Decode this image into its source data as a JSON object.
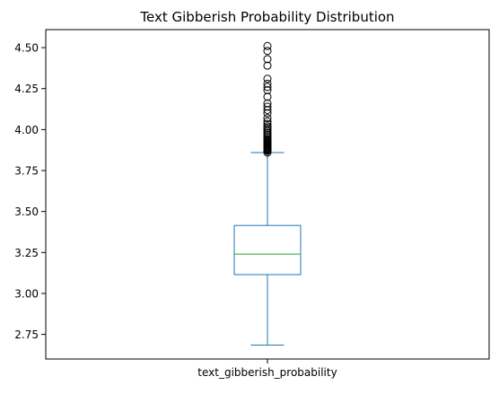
{
  "chart_data": {
    "type": "box",
    "title": "Text Gibberish Probability Distribution",
    "xlabel": "",
    "ylabel": "",
    "categories": [
      "text_gibberish_probability"
    ],
    "ylim": [
      2.6,
      4.61
    ],
    "yticks": [
      2.75,
      3.0,
      3.25,
      3.5,
      3.75,
      4.0,
      4.25,
      4.5
    ],
    "ytick_labels": [
      "2.75",
      "3.00",
      "3.25",
      "3.50",
      "3.75",
      "4.00",
      "4.25",
      "4.50"
    ],
    "grid": false,
    "legend": "none",
    "boxes": [
      {
        "name": "text_gibberish_probability",
        "whisker_low": 2.685,
        "q1": 3.115,
        "median": 3.24,
        "q3": 3.415,
        "whisker_high": 3.86,
        "outliers": [
          3.86,
          3.87,
          3.875,
          3.88,
          3.885,
          3.89,
          3.895,
          3.9,
          3.905,
          3.91,
          3.915,
          3.92,
          3.925,
          3.93,
          3.935,
          3.94,
          3.95,
          3.96,
          3.97,
          3.98,
          3.99,
          4.0,
          4.01,
          4.02,
          4.035,
          4.05,
          4.07,
          4.1,
          4.12,
          4.14,
          4.16,
          4.2,
          4.24,
          4.26,
          4.28,
          4.31,
          4.39,
          4.43,
          4.48,
          4.51
        ]
      }
    ],
    "colors": {
      "box": "#1f77b4",
      "median": "#2ca02c",
      "outlier_edge": "#000000",
      "axes": "#000000"
    }
  }
}
